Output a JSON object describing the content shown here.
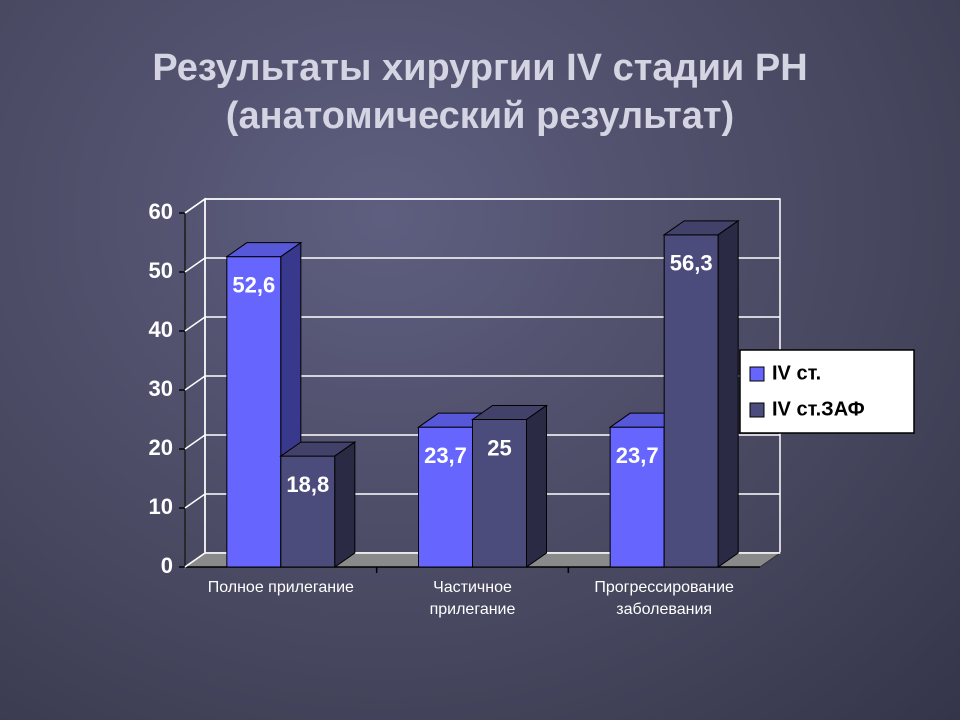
{
  "chart_data": {
    "type": "bar3d",
    "title": "Результаты хирургии IV стадии РН",
    "subtitle": "(анатомический результат)",
    "categories": [
      "Полное прилегание",
      "Частичное\nприлегание",
      "Прогрессирование\nзаболевания"
    ],
    "series": [
      {
        "name": "IV ст.",
        "color": "#6666ff",
        "values": [
          52.6,
          23.7,
          23.7
        ],
        "value_labels": [
          "52,6",
          "23,7",
          "23,7"
        ]
      },
      {
        "name": "IV ст.ЗАФ",
        "color": "#4c4c7c",
        "values": [
          18.8,
          25,
          56.3
        ],
        "value_labels": [
          "18,8",
          "25",
          "56,3"
        ]
      }
    ],
    "ylim": [
      0,
      60
    ],
    "yticks": [
      0,
      10,
      20,
      30,
      40,
      50,
      60
    ],
    "grid": true
  }
}
